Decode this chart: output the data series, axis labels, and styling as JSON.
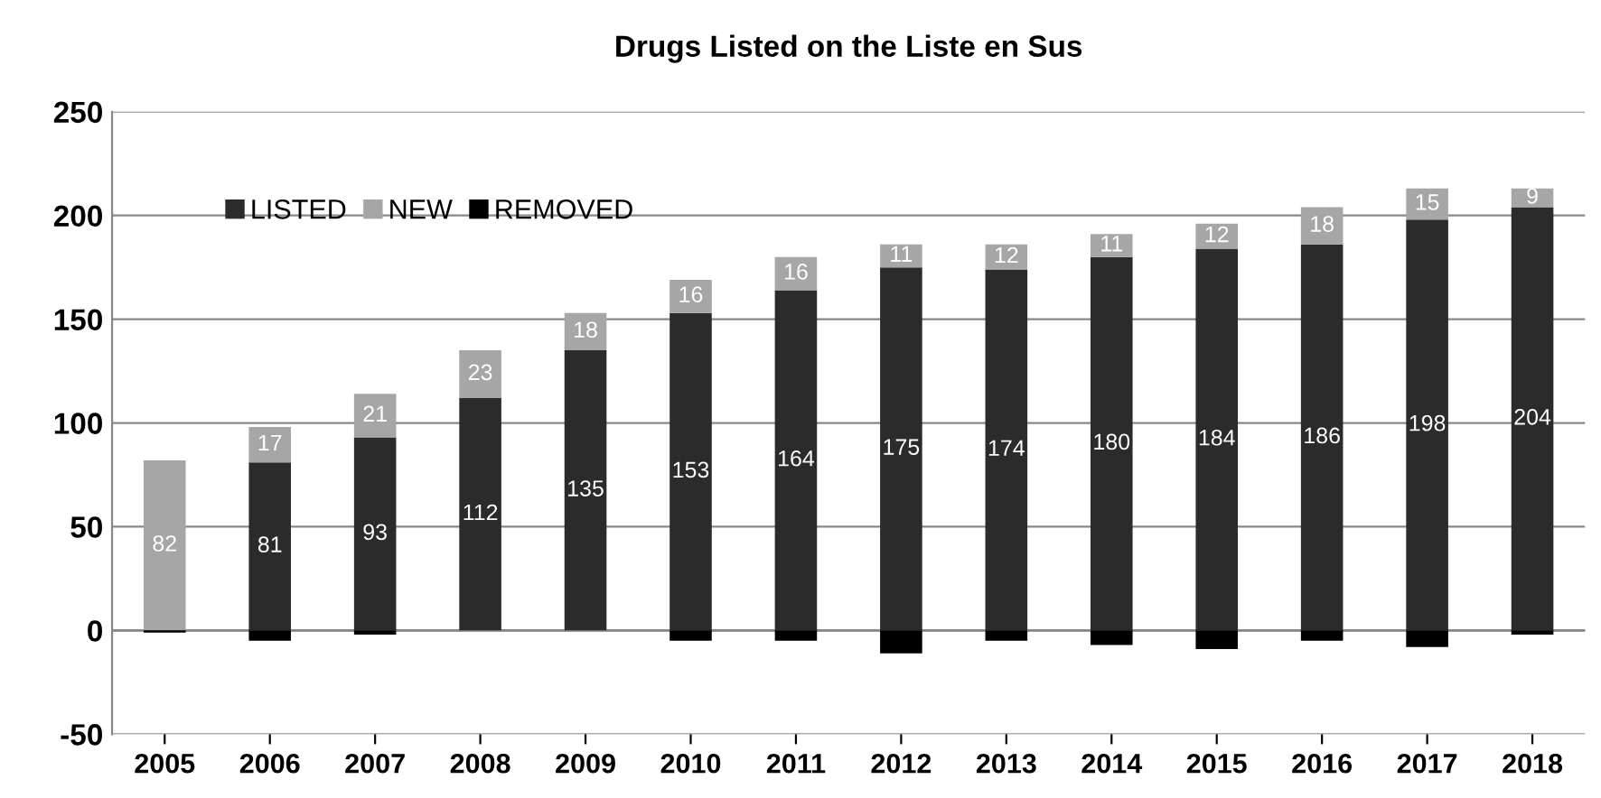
{
  "chart_data": {
    "type": "bar",
    "title": "Drugs Listed on the Liste en Sus",
    "stacked": true,
    "categories": [
      "2005",
      "2006",
      "2007",
      "2008",
      "2009",
      "2010",
      "2011",
      "2012",
      "2013",
      "2014",
      "2015",
      "2016",
      "2017",
      "2018"
    ],
    "series": [
      {
        "name": "LISTED",
        "color": "#2b2b2b",
        "values": [
          0,
          81,
          93,
          112,
          135,
          153,
          164,
          175,
          174,
          180,
          184,
          186,
          198,
          204
        ],
        "value_labels": [
          null,
          "81",
          "93",
          "112",
          "135",
          "153",
          "164",
          "175",
          "174",
          "180",
          "184",
          "186",
          "198",
          "204"
        ]
      },
      {
        "name": "NEW",
        "color": "#a6a6a6",
        "values": [
          82,
          17,
          21,
          23,
          18,
          16,
          16,
          11,
          12,
          11,
          12,
          18,
          15,
          9
        ],
        "value_labels": [
          "82",
          "17",
          "21",
          "23",
          "18",
          "16",
          "16",
          "11",
          "12",
          "11",
          "12",
          "18",
          "15",
          "9"
        ]
      },
      {
        "name": "REMOVED",
        "color": "#000000",
        "values": [
          -1,
          -5,
          -2,
          0,
          0,
          -5,
          -5,
          -11,
          -5,
          -7,
          -9,
          -5,
          -8,
          -2
        ]
      }
    ],
    "ylim": [
      -50,
      250
    ],
    "yticks": [
      -50,
      0,
      50,
      100,
      150,
      200,
      250
    ],
    "grid": "y",
    "legend": "top left"
  }
}
